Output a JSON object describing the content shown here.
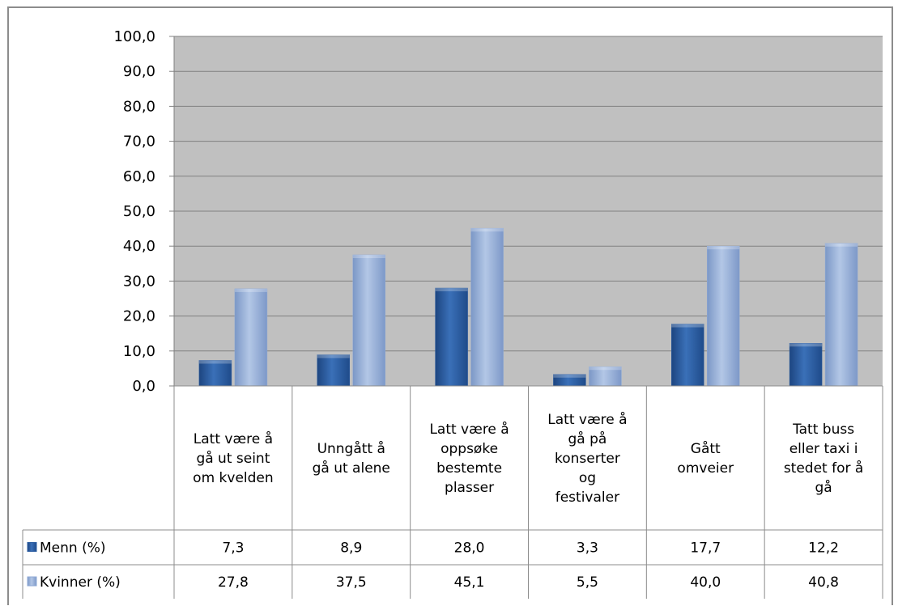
{
  "chart_data": {
    "type": "bar",
    "title": "",
    "xlabel": "",
    "ylabel": "",
    "ylim": [
      0,
      100
    ],
    "yticks": [
      "0,0",
      "10,0",
      "20,0",
      "30,0",
      "40,0",
      "50,0",
      "60,0",
      "70,0",
      "80,0",
      "90,0",
      "100,0"
    ],
    "grid": true,
    "legend": "data-table",
    "categories": [
      "Latt være å gå ut seint om kvelden",
      "Unngått å gå ut alene",
      "Latt være å oppsøke bestemte plasser",
      "Latt være å gå på konserter og festivaler",
      "Gått omveier",
      "Tatt buss eller taxi i stedet for å gå"
    ],
    "category_lines": [
      [
        "Latt være å",
        "gå ut seint",
        "om kvelden"
      ],
      [
        "Unngått å",
        "gå ut alene"
      ],
      [
        "Latt være å",
        "oppsøke",
        "bestemte",
        "plasser"
      ],
      [
        "Latt være å",
        "gå på",
        "konserter",
        "og",
        "festivaler"
      ],
      [
        "Gått",
        "omveier"
      ],
      [
        "Tatt buss",
        "eller taxi i",
        "stedet for å",
        "gå"
      ]
    ],
    "series": [
      {
        "name": "Menn (%)",
        "values": [
          7.3,
          8.9,
          28.0,
          3.3,
          17.7,
          12.2
        ],
        "labels": [
          "7,3",
          "8,9",
          "28,0",
          "3,3",
          "17,7",
          "12,2"
        ],
        "color": "#2e5fa3"
      },
      {
        "name": "Kvinner (%)",
        "values": [
          27.8,
          37.5,
          45.1,
          5.5,
          40.0,
          40.8
        ],
        "labels": [
          "27,8",
          "37,5",
          "45,1",
          "5,5",
          "40,0",
          "40,8"
        ],
        "color": "#8faad6"
      }
    ],
    "colors": {
      "plot_bg": "#c0c0c0",
      "grid": "#808080",
      "border": "#8c8c8c"
    }
  }
}
